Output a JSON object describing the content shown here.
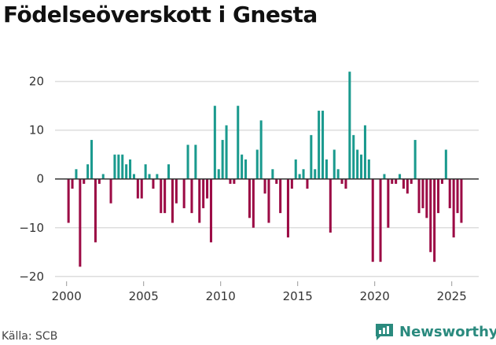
{
  "title": "Födelseöverskott i Gnesta",
  "source": "Källa: SCB",
  "brand": "Newsworthy",
  "colors": {
    "positive": "#1a9a8e",
    "negative": "#9c0b45",
    "grid": "#dddddd",
    "zero": "#333333",
    "brand": "#2a8a7e"
  },
  "chart_data": {
    "type": "bar",
    "title": "Födelseöverskott i Gnesta",
    "xlabel": "",
    "ylabel": "",
    "ylim": [
      -21,
      23
    ],
    "y_ticks": [
      -20,
      -10,
      0,
      10,
      20
    ],
    "y_tick_labels": [
      "−20",
      "−10",
      "0",
      "10",
      "20"
    ],
    "x_ticks": [
      2000,
      2005,
      2010,
      2015,
      2020,
      2025
    ],
    "x_tick_labels": [
      "2000",
      "2005",
      "2010",
      "2015",
      "2020",
      "2025"
    ],
    "xlim": [
      1999.25,
      2026.75
    ],
    "frequency": "quarterly",
    "start": [
      2000,
      1
    ],
    "values": [
      -9,
      -2,
      2,
      -18,
      -1,
      3,
      8,
      -13,
      -1,
      1,
      0,
      -5,
      5,
      5,
      5,
      3,
      4,
      1,
      -4,
      -4,
      3,
      1,
      -2,
      1,
      -7,
      -7,
      3,
      -9,
      -5,
      0,
      -6,
      7,
      -7,
      7,
      -9,
      -6,
      -4,
      -13,
      15,
      2,
      8,
      11,
      -1,
      -1,
      15,
      5,
      4,
      -8,
      -10,
      6,
      12,
      -3,
      -9,
      2,
      -1,
      -7,
      0,
      -12,
      -2,
      4,
      1,
      2,
      -2,
      9,
      2,
      14,
      14,
      4,
      -11,
      6,
      2,
      -1,
      -2,
      22,
      9,
      6,
      5,
      11,
      4,
      -17,
      0,
      -17,
      1,
      -10,
      -1,
      -1,
      1,
      -2,
      -3,
      -1,
      8,
      -7,
      -6,
      -8,
      -15,
      -17,
      -7,
      -1,
      6,
      -6,
      -12,
      -7,
      -9
    ]
  }
}
